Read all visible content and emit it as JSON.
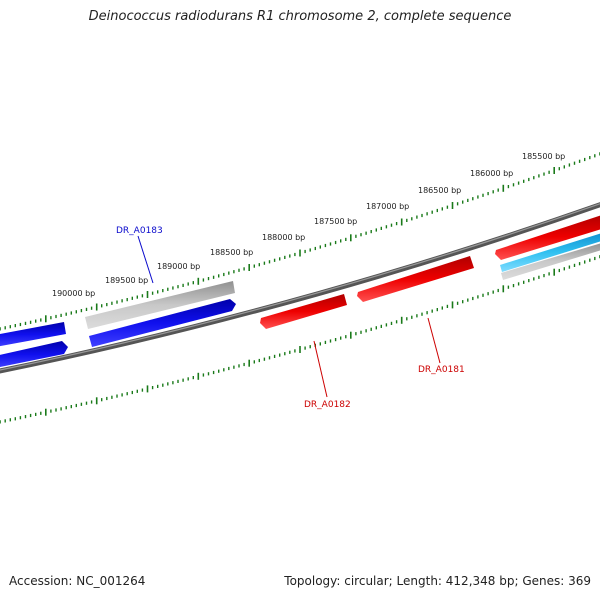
{
  "title": "Deinococcus radiodurans R1 chromosome 2, complete sequence",
  "footer": {
    "accession": "Accession: NC_001264",
    "summary": "Topology: circular; Length: 412,348 bp; Genes: 369"
  },
  "ruler": {
    "tick_color": "#1a7a1a",
    "labels": [
      "190000 bp",
      "189500 bp",
      "189000 bp",
      "188500 bp",
      "188000 bp",
      "187500 bp",
      "187000 bp",
      "186500 bp",
      "186000 bp",
      "185500 bp"
    ]
  },
  "genes": [
    {
      "name": "DR_A0183",
      "color": "#0a0acc"
    },
    {
      "name": "DR_A0182",
      "color": "#cc0000"
    },
    {
      "name": "DR_A0181",
      "color": "#cc0000"
    }
  ],
  "colors": {
    "backbone": "#666666",
    "forward_strand": "#0000ee",
    "reverse_strand": "#ee0000",
    "grey_feature": "#a8a8a8",
    "cyan_feature": "#22b8e8"
  }
}
